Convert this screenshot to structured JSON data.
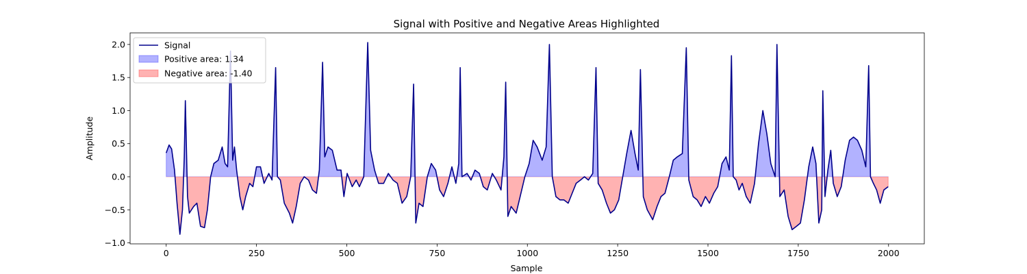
{
  "chart_data": {
    "type": "line",
    "title": "Signal with Positive and Negative Areas Highlighted",
    "xlabel": "Sample",
    "ylabel": "Amplitude",
    "xlim": [
      -100,
      2099
    ],
    "ylim": [
      -1.015,
      2.175
    ],
    "xticks": [
      0,
      250,
      500,
      750,
      1000,
      1250,
      1500,
      1750,
      2000
    ],
    "yticks": [
      {
        "value": -1.0,
        "label": "−1.0"
      },
      {
        "value": -0.5,
        "label": "−0.5"
      },
      {
        "value": 0.0,
        "label": "0.0"
      },
      {
        "value": 0.5,
        "label": "0.5"
      },
      {
        "value": 1.0,
        "label": "1.0"
      },
      {
        "value": 1.5,
        "label": "1.5"
      },
      {
        "value": 2.0,
        "label": "2.0"
      }
    ],
    "legend": "upper left",
    "x": [
      0,
      8,
      15,
      23,
      30,
      38,
      45,
      50,
      53,
      59,
      64,
      76,
      85,
      95,
      106,
      114,
      123,
      132,
      144,
      155,
      163,
      170,
      178,
      184,
      189,
      195,
      204,
      212,
      220,
      231,
      240,
      250,
      261,
      271,
      284,
      293,
      303,
      308,
      316,
      327,
      341,
      350,
      360,
      371,
      382,
      394,
      405,
      416,
      424,
      433,
      439,
      448,
      460,
      473,
      484,
      492,
      501,
      515,
      526,
      535,
      547,
      558,
      566,
      577,
      588,
      602,
      615,
      628,
      640,
      653,
      666,
      677,
      685,
      691,
      700,
      711,
      723,
      734,
      746,
      757,
      768,
      780,
      791,
      802,
      810,
      814,
      819,
      833,
      844,
      855,
      867,
      878,
      889,
      903,
      914,
      927,
      935,
      940,
      946,
      955,
      969,
      980,
      993,
      1005,
      1016,
      1027,
      1041,
      1052,
      1061,
      1069,
      1079,
      1090,
      1101,
      1113,
      1124,
      1135,
      1147,
      1158,
      1169,
      1181,
      1190,
      1196,
      1207,
      1219,
      1230,
      1241,
      1253,
      1264,
      1275,
      1287,
      1298,
      1307,
      1313,
      1321,
      1332,
      1347,
      1359,
      1370,
      1381,
      1393,
      1404,
      1415,
      1429,
      1440,
      1447,
      1459,
      1470,
      1481,
      1493,
      1504,
      1516,
      1527,
      1539,
      1550,
      1559,
      1565,
      1570,
      1578,
      1586,
      1595,
      1606,
      1617,
      1629,
      1640,
      1652,
      1663,
      1674,
      1686,
      1691,
      1699,
      1711,
      1722,
      1733,
      1745,
      1756,
      1767,
      1779,
      1790,
      1799,
      1807,
      1815,
      1818,
      1824,
      1832,
      1840,
      1847,
      1858,
      1869,
      1880,
      1892,
      1903,
      1914,
      1926,
      1937,
      1945,
      1950,
      1958,
      1967,
      1977,
      1987,
      1999
    ],
    "series": [
      {
        "name": "Signal",
        "color": "#00008b",
        "values": [
          0.36,
          0.48,
          0.42,
          0.1,
          -0.4,
          -0.87,
          -0.5,
          0.3,
          1.15,
          -0.3,
          -0.55,
          -0.45,
          -0.4,
          -0.75,
          -0.77,
          -0.5,
          0.0,
          0.2,
          0.25,
          0.45,
          0.2,
          0.15,
          1.9,
          0.25,
          0.45,
          0.1,
          -0.3,
          -0.5,
          -0.3,
          -0.1,
          -0.15,
          0.15,
          0.15,
          -0.1,
          0.05,
          -0.05,
          1.65,
          0.0,
          -0.05,
          -0.4,
          -0.55,
          -0.7,
          -0.45,
          -0.1,
          0.0,
          -0.05,
          -0.2,
          -0.25,
          0.1,
          1.73,
          0.3,
          0.45,
          0.4,
          0.1,
          0.1,
          -0.3,
          0.05,
          -0.15,
          -0.05,
          -0.15,
          0.0,
          2.03,
          0.4,
          0.1,
          -0.1,
          -0.1,
          0.05,
          -0.05,
          -0.1,
          -0.4,
          -0.3,
          0.0,
          1.4,
          -0.7,
          -0.4,
          -0.45,
          0.0,
          0.2,
          0.1,
          -0.2,
          -0.3,
          -0.1,
          0.15,
          -0.1,
          0.2,
          1.65,
          0.0,
          0.05,
          -0.05,
          0.1,
          0.05,
          -0.15,
          -0.2,
          0.05,
          -0.05,
          -0.2,
          0.3,
          1.43,
          -0.6,
          -0.45,
          -0.55,
          -0.3,
          0.0,
          0.2,
          0.55,
          0.45,
          0.25,
          0.45,
          2.0,
          0.0,
          -0.3,
          -0.35,
          -0.35,
          -0.4,
          -0.25,
          -0.1,
          -0.05,
          0.0,
          -0.05,
          0.05,
          1.65,
          -0.1,
          -0.2,
          -0.4,
          -0.55,
          -0.5,
          -0.35,
          0.0,
          0.35,
          0.7,
          0.35,
          0.1,
          1.62,
          -0.3,
          -0.5,
          -0.65,
          -0.45,
          -0.3,
          -0.25,
          0.0,
          0.25,
          0.3,
          0.35,
          1.95,
          -0.05,
          -0.3,
          -0.35,
          -0.45,
          -0.3,
          -0.4,
          -0.25,
          -0.15,
          0.2,
          0.3,
          0.1,
          1.83,
          0.0,
          -0.05,
          -0.2,
          -0.1,
          -0.3,
          -0.4,
          -0.1,
          0.5,
          1.0,
          0.65,
          0.2,
          0.0,
          2.0,
          -0.3,
          -0.2,
          -0.6,
          -0.8,
          -0.75,
          -0.7,
          -0.35,
          0.15,
          0.45,
          0.2,
          -0.7,
          -0.5,
          1.3,
          -0.3,
          0.1,
          0.4,
          -0.1,
          -0.3,
          -0.15,
          0.25,
          0.55,
          0.6,
          0.55,
          0.4,
          0.15,
          1.68,
          0.0,
          -0.1,
          -0.2,
          -0.4,
          -0.2,
          -0.15
        ]
      }
    ],
    "areas": [
      {
        "name": "Positive area: 1.34",
        "color": "#0000ff",
        "sign": "positive"
      },
      {
        "name": "Negative area: -1.40",
        "color": "#ff0000",
        "sign": "negative"
      }
    ]
  }
}
